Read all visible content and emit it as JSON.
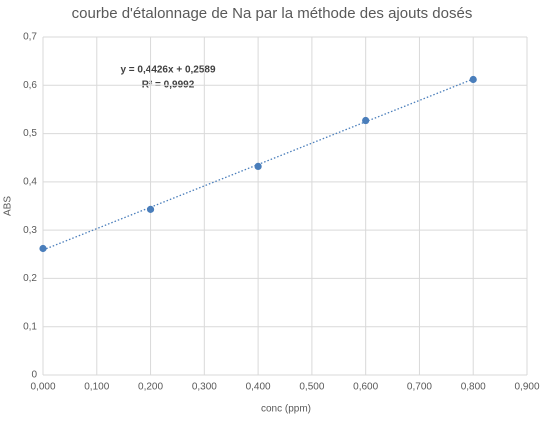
{
  "chart_data": {
    "type": "scatter",
    "title": "courbe d'étalonnage de Na par la méthode des ajouts dosés",
    "x_label": "conc (ppm)",
    "y_label": "ABS",
    "series": [
      {
        "name": "ABS",
        "color": "#4a7ebb",
        "x": [
          0,
          0.2,
          0.4,
          0.6,
          0.8
        ],
        "values": [
          0.262,
          0.343,
          0.432,
          0.527,
          0.612
        ]
      }
    ],
    "trendline": {
      "slope": 0.4426,
      "intercept": 0.2589,
      "style": "dotted",
      "equation": "y = 0,4426x + 0,2589",
      "r2": "R² = 0,9992"
    },
    "xlim": [
      0,
      0.9
    ],
    "xticks": [
      {
        "value": 0,
        "label": "0,000"
      },
      {
        "value": 0.1,
        "label": "0,100"
      },
      {
        "value": 0.2,
        "label": "0,200"
      },
      {
        "value": 0.3,
        "label": "0,300"
      },
      {
        "value": 0.4,
        "label": "0,400"
      },
      {
        "value": 0.5,
        "label": "0,500"
      },
      {
        "value": 0.6,
        "label": "0,600"
      },
      {
        "value": 0.7,
        "label": "0,700"
      },
      {
        "value": 0.8,
        "label": "0,800"
      },
      {
        "value": 0.9,
        "label": "0,900"
      }
    ],
    "ylim": [
      0,
      0.7
    ],
    "yticks": [
      0,
      {
        "value": 0.1,
        "label": "0,1"
      },
      {
        "value": 0.2,
        "label": "0,2"
      },
      {
        "value": 0.3,
        "label": "0,3"
      },
      {
        "value": 0.4,
        "label": "0,4"
      },
      {
        "value": 0.5,
        "label": "0,5"
      },
      {
        "value": 0.6,
        "label": "0,6"
      },
      {
        "value": 0.7,
        "label": "0,7"
      }
    ],
    "grid": true
  }
}
